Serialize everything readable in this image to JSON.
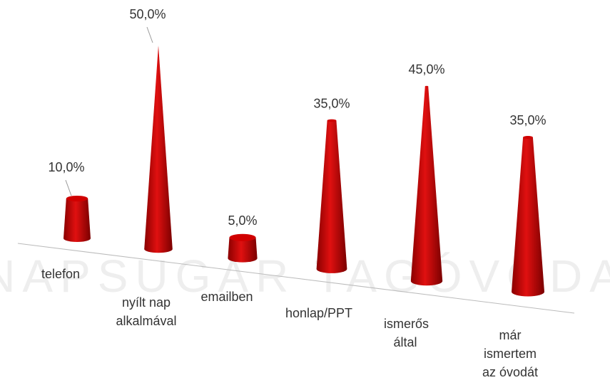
{
  "chart_data": {
    "type": "cone",
    "watermark": "NAPSUGÁR TAGÓVODA",
    "categories": [
      "telefon",
      "nyílt nap alkalmával",
      "emailben",
      "honlap/PPT",
      "ismerős által",
      "már ismertem az óvodát"
    ],
    "values": [
      10,
      50,
      5,
      35,
      45,
      35
    ],
    "value_labels": [
      "10,0%",
      "50,0%",
      "5,0%",
      "35,0%",
      "45,0%",
      "35,0%"
    ],
    "color": "#cc0000"
  }
}
